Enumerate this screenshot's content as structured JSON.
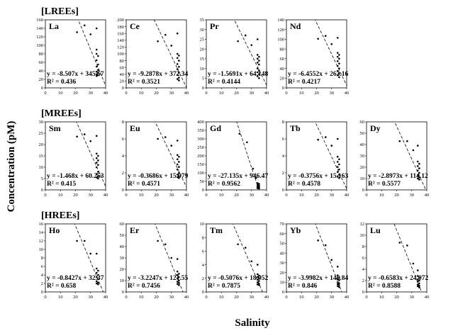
{
  "figure": {
    "ylabel": "Concentration (pM)",
    "xlabel": "Salinity"
  },
  "groups": [
    {
      "label": "[LREEs]"
    },
    {
      "label": "[MREEs]"
    },
    {
      "label": "[HREEs]"
    }
  ],
  "chart_data": [
    {
      "type": "scatter",
      "group": 0,
      "element": "La",
      "ylim": [
        0,
        160
      ],
      "yticks": [
        0,
        20,
        40,
        60,
        80,
        100,
        120,
        140,
        160
      ],
      "xlim": [
        0,
        40
      ],
      "xticks": [
        0,
        10,
        20,
        30,
        40
      ],
      "equation": "y = -8.507x + 345.57",
      "r2": "R² = 0.436",
      "slope": -8.507,
      "intercept": 345.57,
      "points": [
        [
          21,
          131
        ],
        [
          26,
          147
        ],
        [
          30,
          126
        ],
        [
          34,
          140
        ],
        [
          34,
          90
        ],
        [
          34,
          80
        ],
        [
          35,
          75
        ],
        [
          34,
          65
        ],
        [
          35,
          55
        ],
        [
          34,
          50
        ],
        [
          35,
          42
        ],
        [
          34,
          38
        ],
        [
          35,
          35
        ],
        [
          34,
          32
        ],
        [
          35,
          30
        ],
        [
          34,
          28
        ]
      ]
    },
    {
      "type": "scatter",
      "group": 0,
      "element": "Ce",
      "ylim": [
        0,
        200
      ],
      "yticks": [
        0,
        20,
        40,
        60,
        80,
        100,
        120,
        140,
        160,
        180,
        200
      ],
      "xlim": [
        0,
        40
      ],
      "xticks": [
        0,
        10,
        20,
        30,
        40
      ],
      "equation": "y = -9.2878x + 372.34",
      "r2": "R² = 0.3521",
      "slope": -9.2878,
      "intercept": 372.34,
      "points": [
        [
          21,
          137
        ],
        [
          26,
          156
        ],
        [
          30,
          124
        ],
        [
          34,
          160
        ],
        [
          34,
          100
        ],
        [
          35,
          95
        ],
        [
          34,
          88
        ],
        [
          35,
          80
        ],
        [
          34,
          70
        ],
        [
          35,
          62
        ],
        [
          34,
          55
        ],
        [
          35,
          45
        ],
        [
          34,
          38
        ],
        [
          35,
          30
        ],
        [
          34,
          26
        ],
        [
          35,
          22
        ]
      ]
    },
    {
      "type": "scatter",
      "group": 0,
      "element": "Pr",
      "ylim": [
        0,
        35
      ],
      "yticks": [
        0,
        5,
        10,
        15,
        20,
        25,
        30,
        35
      ],
      "xlim": [
        0,
        40
      ],
      "xticks": [
        0,
        10,
        20,
        30,
        40
      ],
      "equation": "y = -1.5691x + 64.148",
      "r2": "R² = 0.4144",
      "slope": -1.5691,
      "intercept": 64.148,
      "points": [
        [
          21,
          24
        ],
        [
          26,
          27
        ],
        [
          30,
          22
        ],
        [
          34,
          25
        ],
        [
          34,
          17
        ],
        [
          35,
          16
        ],
        [
          34,
          15
        ],
        [
          35,
          14
        ],
        [
          34,
          13
        ],
        [
          35,
          12
        ],
        [
          34,
          10
        ],
        [
          35,
          9
        ],
        [
          34,
          8
        ],
        [
          35,
          7
        ],
        [
          34,
          6
        ],
        [
          35,
          5
        ]
      ]
    },
    {
      "type": "scatter",
      "group": 0,
      "element": "Nd",
      "ylim": [
        0,
        140
      ],
      "yticks": [
        0,
        20,
        40,
        60,
        80,
        100,
        120,
        140
      ],
      "xlim": [
        0,
        40
      ],
      "xticks": [
        0,
        10,
        20,
        30,
        40
      ],
      "equation": "y = -6.4552x + 263.16",
      "r2": "R² = 0.4217",
      "slope": -6.4552,
      "intercept": 263.16,
      "points": [
        [
          21,
          101
        ],
        [
          26,
          107
        ],
        [
          30,
          90
        ],
        [
          34,
          103
        ],
        [
          34,
          72
        ],
        [
          35,
          68
        ],
        [
          34,
          64
        ],
        [
          35,
          60
        ],
        [
          34,
          55
        ],
        [
          35,
          50
        ],
        [
          34,
          45
        ],
        [
          35,
          40
        ],
        [
          34,
          35
        ],
        [
          35,
          30
        ],
        [
          34,
          26
        ],
        [
          35,
          22
        ]
      ]
    },
    {
      "type": "scatter",
      "group": 1,
      "element": "Sm",
      "ylim": [
        0,
        30
      ],
      "yticks": [
        0,
        5,
        10,
        15,
        20,
        25,
        30
      ],
      "xlim": [
        0,
        40
      ],
      "xticks": [
        0,
        10,
        20,
        30,
        40
      ],
      "equation": "y = -1.468x + 60.253",
      "r2": "R² = 0.415",
      "slope": -1.468,
      "intercept": 60.253,
      "points": [
        [
          21,
          23.5
        ],
        [
          26,
          24.5
        ],
        [
          30,
          21.5
        ],
        [
          34,
          23.8
        ],
        [
          34,
          16
        ],
        [
          35,
          15
        ],
        [
          34,
          14
        ],
        [
          35,
          13
        ],
        [
          34,
          12
        ],
        [
          35,
          11
        ],
        [
          34,
          10
        ],
        [
          35,
          8
        ],
        [
          34,
          7
        ],
        [
          35,
          6
        ],
        [
          34,
          5.5
        ],
        [
          35,
          5
        ]
      ]
    },
    {
      "type": "scatter",
      "group": 1,
      "element": "Eu",
      "ylim": [
        0,
        8
      ],
      "yticks": [
        0,
        2,
        4,
        6,
        8
      ],
      "xlim": [
        0,
        40
      ],
      "xticks": [
        0,
        10,
        20,
        30,
        40
      ],
      "equation": "y = -0.3686x + 15.079",
      "r2": "R² = 0.4571",
      "slope": -0.3686,
      "intercept": 15.079,
      "points": [
        [
          21,
          6.0
        ],
        [
          26,
          6.2
        ],
        [
          30,
          5.2
        ],
        [
          34,
          5.8
        ],
        [
          34,
          4.1
        ],
        [
          35,
          3.9
        ],
        [
          34,
          3.6
        ],
        [
          35,
          3.3
        ],
        [
          34,
          3.0
        ],
        [
          35,
          2.7
        ],
        [
          34,
          2.4
        ],
        [
          35,
          2.0
        ],
        [
          34,
          1.8
        ],
        [
          35,
          1.6
        ],
        [
          34,
          1.5
        ],
        [
          35,
          1.4
        ]
      ]
    },
    {
      "type": "scatter",
      "group": 1,
      "element": "Gd",
      "ylim": [
        0,
        400
      ],
      "yticks": [
        0,
        50,
        100,
        150,
        200,
        250,
        300,
        350,
        400
      ],
      "xlim": [
        0,
        40
      ],
      "xticks": [
        0,
        10,
        20,
        30,
        40
      ],
      "equation": "y = -27.135x + 946.47",
      "r2": "R² = 0.9562",
      "slope": -27.135,
      "intercept": 946.47,
      "points": [
        [
          22,
          330
        ],
        [
          27,
          280
        ],
        [
          31,
          125
        ],
        [
          33,
          70
        ],
        [
          34,
          40
        ],
        [
          35,
          35
        ],
        [
          34,
          30
        ],
        [
          35,
          25
        ],
        [
          34,
          20
        ],
        [
          35,
          18
        ],
        [
          34,
          15
        ],
        [
          35,
          12
        ],
        [
          34,
          10
        ],
        [
          35,
          8
        ]
      ]
    },
    {
      "type": "scatter",
      "group": 1,
      "element": "Tb",
      "ylim": [
        0,
        8
      ],
      "yticks": [
        0,
        2,
        4,
        6,
        8
      ],
      "xlim": [
        0,
        40
      ],
      "xticks": [
        0,
        10,
        20,
        30,
        40
      ],
      "equation": "y = -0.3756x + 15.163",
      "r2": "R² = 0.4578",
      "slope": -0.3756,
      "intercept": 15.163,
      "points": [
        [
          21,
          5.9
        ],
        [
          26,
          6.2
        ],
        [
          30,
          5.2
        ],
        [
          34,
          6.0
        ],
        [
          34,
          3.9
        ],
        [
          35,
          3.6
        ],
        [
          34,
          3.3
        ],
        [
          35,
          3.0
        ],
        [
          34,
          2.7
        ],
        [
          35,
          2.4
        ],
        [
          34,
          2.1
        ],
        [
          35,
          1.8
        ],
        [
          34,
          1.6
        ],
        [
          35,
          1.4
        ]
      ]
    },
    {
      "type": "scatter",
      "group": 1,
      "element": "Dy",
      "ylim": [
        0,
        60
      ],
      "yticks": [
        0,
        10,
        20,
        30,
        40,
        50,
        60
      ],
      "xlim": [
        0,
        40
      ],
      "xticks": [
        0,
        10,
        20,
        30,
        40
      ],
      "equation": "y = -2.8973x + 114.12",
      "r2": "R² = 0.5577",
      "slope": -2.8973,
      "intercept": 114.12,
      "points": [
        [
          22,
          43
        ],
        [
          27,
          43
        ],
        [
          31,
          35
        ],
        [
          34,
          39
        ],
        [
          34,
          25
        ],
        [
          35,
          23
        ],
        [
          34,
          21
        ],
        [
          35,
          19
        ],
        [
          34,
          17
        ],
        [
          35,
          15
        ],
        [
          34,
          13
        ],
        [
          35,
          11
        ],
        [
          34,
          10
        ],
        [
          35,
          9
        ]
      ]
    },
    {
      "type": "scatter",
      "group": 2,
      "element": "Ho",
      "ylim": [
        0,
        16
      ],
      "yticks": [
        0,
        2,
        4,
        6,
        8,
        10,
        12,
        14,
        16
      ],
      "xlim": [
        0,
        40
      ],
      "xticks": [
        0,
        10,
        20,
        30,
        40
      ],
      "equation": "y = -0.8427x + 32.37",
      "r2": "R² = 0.658",
      "slope": -0.8427,
      "intercept": 32.37,
      "points": [
        [
          21,
          12
        ],
        [
          26,
          12
        ],
        [
          30,
          9
        ],
        [
          34,
          9
        ],
        [
          34,
          5.5
        ],
        [
          35,
          5.0
        ],
        [
          34,
          4.5
        ],
        [
          35,
          4.0
        ],
        [
          34,
          3.5
        ],
        [
          35,
          3.0
        ],
        [
          34,
          2.5
        ],
        [
          35,
          2.2
        ],
        [
          34,
          2.0
        ],
        [
          35,
          1.8
        ]
      ]
    },
    {
      "type": "scatter",
      "group": 2,
      "element": "Er",
      "ylim": [
        0,
        60
      ],
      "yticks": [
        0,
        10,
        20,
        30,
        40,
        50,
        60
      ],
      "xlim": [
        0,
        40
      ],
      "xticks": [
        0,
        10,
        20,
        30,
        40
      ],
      "equation": "y = -3.2247x + 121.55",
      "r2": "R² = 0.7456",
      "slope": -3.2247,
      "intercept": 121.55,
      "points": [
        [
          21,
          45
        ],
        [
          26,
          42
        ],
        [
          30,
          30
        ],
        [
          34,
          29
        ],
        [
          34,
          18
        ],
        [
          35,
          16
        ],
        [
          34,
          15
        ],
        [
          35,
          13
        ],
        [
          34,
          12
        ],
        [
          35,
          10
        ],
        [
          34,
          9
        ],
        [
          35,
          8
        ],
        [
          34,
          7
        ],
        [
          35,
          6
        ]
      ]
    },
    {
      "type": "scatter",
      "group": 2,
      "element": "Tm",
      "ylim": [
        0,
        10
      ],
      "yticks": [
        0,
        2,
        4,
        6,
        8,
        10
      ],
      "xlim": [
        0,
        40
      ],
      "xticks": [
        0,
        10,
        20,
        30,
        40
      ],
      "equation": "y = -0.5076x + 18.952",
      "r2": "R² = 0.7875",
      "slope": -0.5076,
      "intercept": 18.952,
      "points": [
        [
          21,
          7.0
        ],
        [
          26,
          6.5
        ],
        [
          30,
          4.5
        ],
        [
          34,
          4.0
        ],
        [
          34,
          2.6
        ],
        [
          35,
          2.4
        ],
        [
          34,
          2.2
        ],
        [
          35,
          2.0
        ],
        [
          34,
          1.8
        ],
        [
          35,
          1.6
        ],
        [
          34,
          1.4
        ],
        [
          35,
          1.2
        ],
        [
          34,
          1.1
        ],
        [
          35,
          1.0
        ]
      ]
    },
    {
      "type": "scatter",
      "group": 2,
      "element": "Yb",
      "ylim": [
        0,
        70
      ],
      "yticks": [
        0,
        10,
        20,
        30,
        40,
        50,
        60,
        70
      ],
      "xlim": [
        0,
        40
      ],
      "xticks": [
        0,
        10,
        20,
        30,
        40
      ],
      "equation": "y = -3.9982x + 146.84",
      "r2": "R² = 0.846",
      "slope": -3.9982,
      "intercept": 146.84,
      "points": [
        [
          21,
          53
        ],
        [
          26,
          48
        ],
        [
          30,
          33
        ],
        [
          34,
          26
        ],
        [
          34,
          17
        ],
        [
          35,
          15
        ],
        [
          34,
          13
        ],
        [
          35,
          12
        ],
        [
          34,
          10
        ],
        [
          35,
          9
        ],
        [
          34,
          8
        ],
        [
          35,
          7
        ],
        [
          34,
          6
        ],
        [
          35,
          5
        ]
      ]
    },
    {
      "type": "scatter",
      "group": 2,
      "element": "Lu",
      "ylim": [
        0,
        12
      ],
      "yticks": [
        0,
        2,
        4,
        6,
        8,
        10,
        12
      ],
      "xlim": [
        0,
        40
      ],
      "xticks": [
        0,
        10,
        20,
        30,
        40
      ],
      "equation": "y = -0.6583x + 24.072",
      "r2": "R² = 0.8588",
      "slope": -0.6583,
      "intercept": 24.072,
      "points": [
        [
          22,
          8.7
        ],
        [
          27,
          8.2
        ],
        [
          31,
          5.0
        ],
        [
          34,
          3.8
        ],
        [
          34,
          2.8
        ],
        [
          35,
          2.5
        ],
        [
          34,
          2.2
        ],
        [
          35,
          2.0
        ],
        [
          34,
          1.8
        ],
        [
          35,
          1.5
        ],
        [
          34,
          1.3
        ],
        [
          35,
          1.1
        ],
        [
          34,
          1.0
        ],
        [
          35,
          0.8
        ]
      ]
    }
  ]
}
